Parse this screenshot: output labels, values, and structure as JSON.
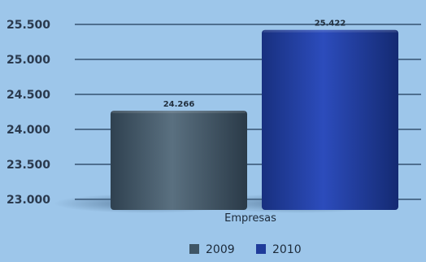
{
  "chart_data": {
    "type": "bar",
    "categories": [
      "Empresas"
    ],
    "series": [
      {
        "name": "2009",
        "values": [
          24266
        ],
        "label": "24.266",
        "color": "#3f5565"
      },
      {
        "name": "2010",
        "values": [
          25422
        ],
        "label": "25.422",
        "color": "#1f3b9a"
      }
    ],
    "ylim": [
      23000,
      25500
    ],
    "yticks": [
      {
        "value": 23000,
        "label": "23.000"
      },
      {
        "value": 23500,
        "label": "23.500"
      },
      {
        "value": 24000,
        "label": "24.000"
      },
      {
        "value": 24500,
        "label": "24.500"
      },
      {
        "value": 25000,
        "label": "25.000"
      },
      {
        "value": 25500,
        "label": "25.500"
      }
    ],
    "grid": true,
    "legend_position": "bottom",
    "bar_style": "3d-cylinder"
  }
}
